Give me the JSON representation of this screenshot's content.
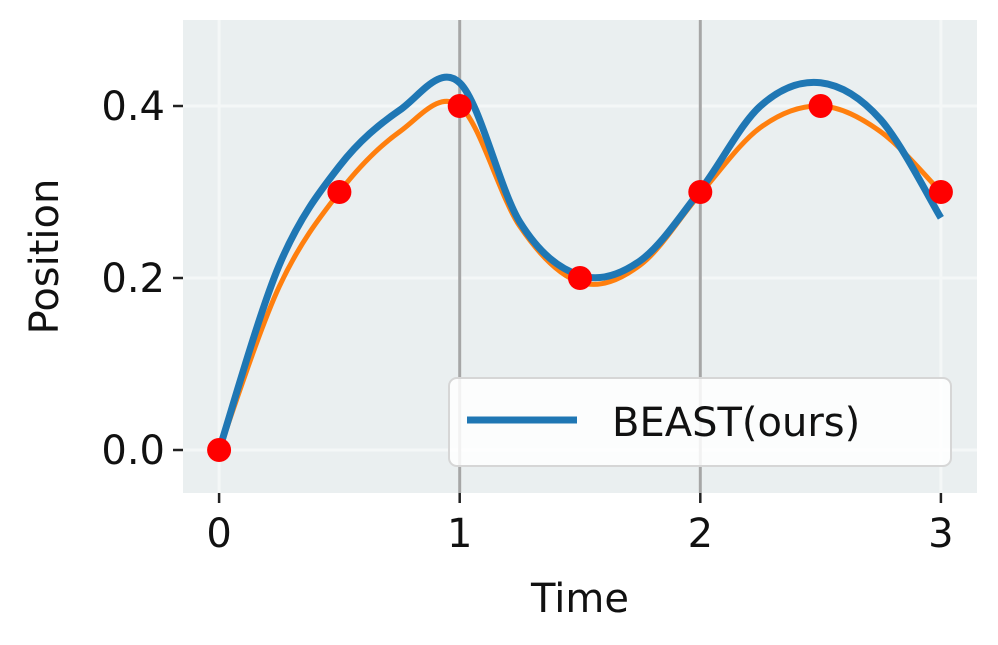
{
  "chart_data": {
    "type": "line",
    "xlabel": "Time",
    "ylabel": "Position",
    "xlim": [
      -0.15,
      3.15
    ],
    "ylim": [
      -0.05,
      0.5
    ],
    "xticks": [
      0,
      1,
      2,
      3
    ],
    "xtick_labels": [
      "0",
      "1",
      "2",
      "3"
    ],
    "yticks": [
      0.0,
      0.2,
      0.4
    ],
    "ytick_labels": [
      "0.0",
      "0.2",
      "0.4"
    ],
    "grid": true,
    "vertical_lines_x": [
      1,
      2
    ],
    "legend": {
      "placement": "lower-right",
      "entries": [
        "BEAST(ours)"
      ]
    },
    "series": [
      {
        "name": "BEAST(ours)",
        "color": "#1f77b4",
        "x": [
          0,
          0.25,
          0.5,
          0.75,
          1.0,
          1.25,
          1.5,
          1.75,
          2.0,
          2.25,
          2.5,
          2.75,
          3.0
        ],
        "y": [
          0.0,
          0.215,
          0.33,
          0.395,
          0.427,
          0.265,
          0.203,
          0.22,
          0.302,
          0.4,
          0.427,
          0.384,
          0.27
        ]
      },
      {
        "color": "#ff7f0e",
        "x": [
          0,
          0.25,
          0.5,
          0.75,
          1.0,
          1.25,
          1.5,
          1.75,
          2.0,
          2.25,
          2.5,
          2.75,
          3.0
        ],
        "y": [
          0.0,
          0.19,
          0.3,
          0.37,
          0.4,
          0.26,
          0.195,
          0.215,
          0.298,
          0.375,
          0.4,
          0.37,
          0.3
        ]
      }
    ],
    "points": {
      "color": "#ff0000",
      "x": [
        0,
        0.5,
        1.0,
        1.5,
        2.0,
        2.5,
        3.0
      ],
      "y": [
        0.0,
        0.3,
        0.4,
        0.2,
        0.3,
        0.4,
        0.3
      ]
    },
    "colors": {
      "plot_background": "#eaeff0",
      "grid": "#f4f7f7",
      "vline": "#a6a6a6"
    }
  }
}
